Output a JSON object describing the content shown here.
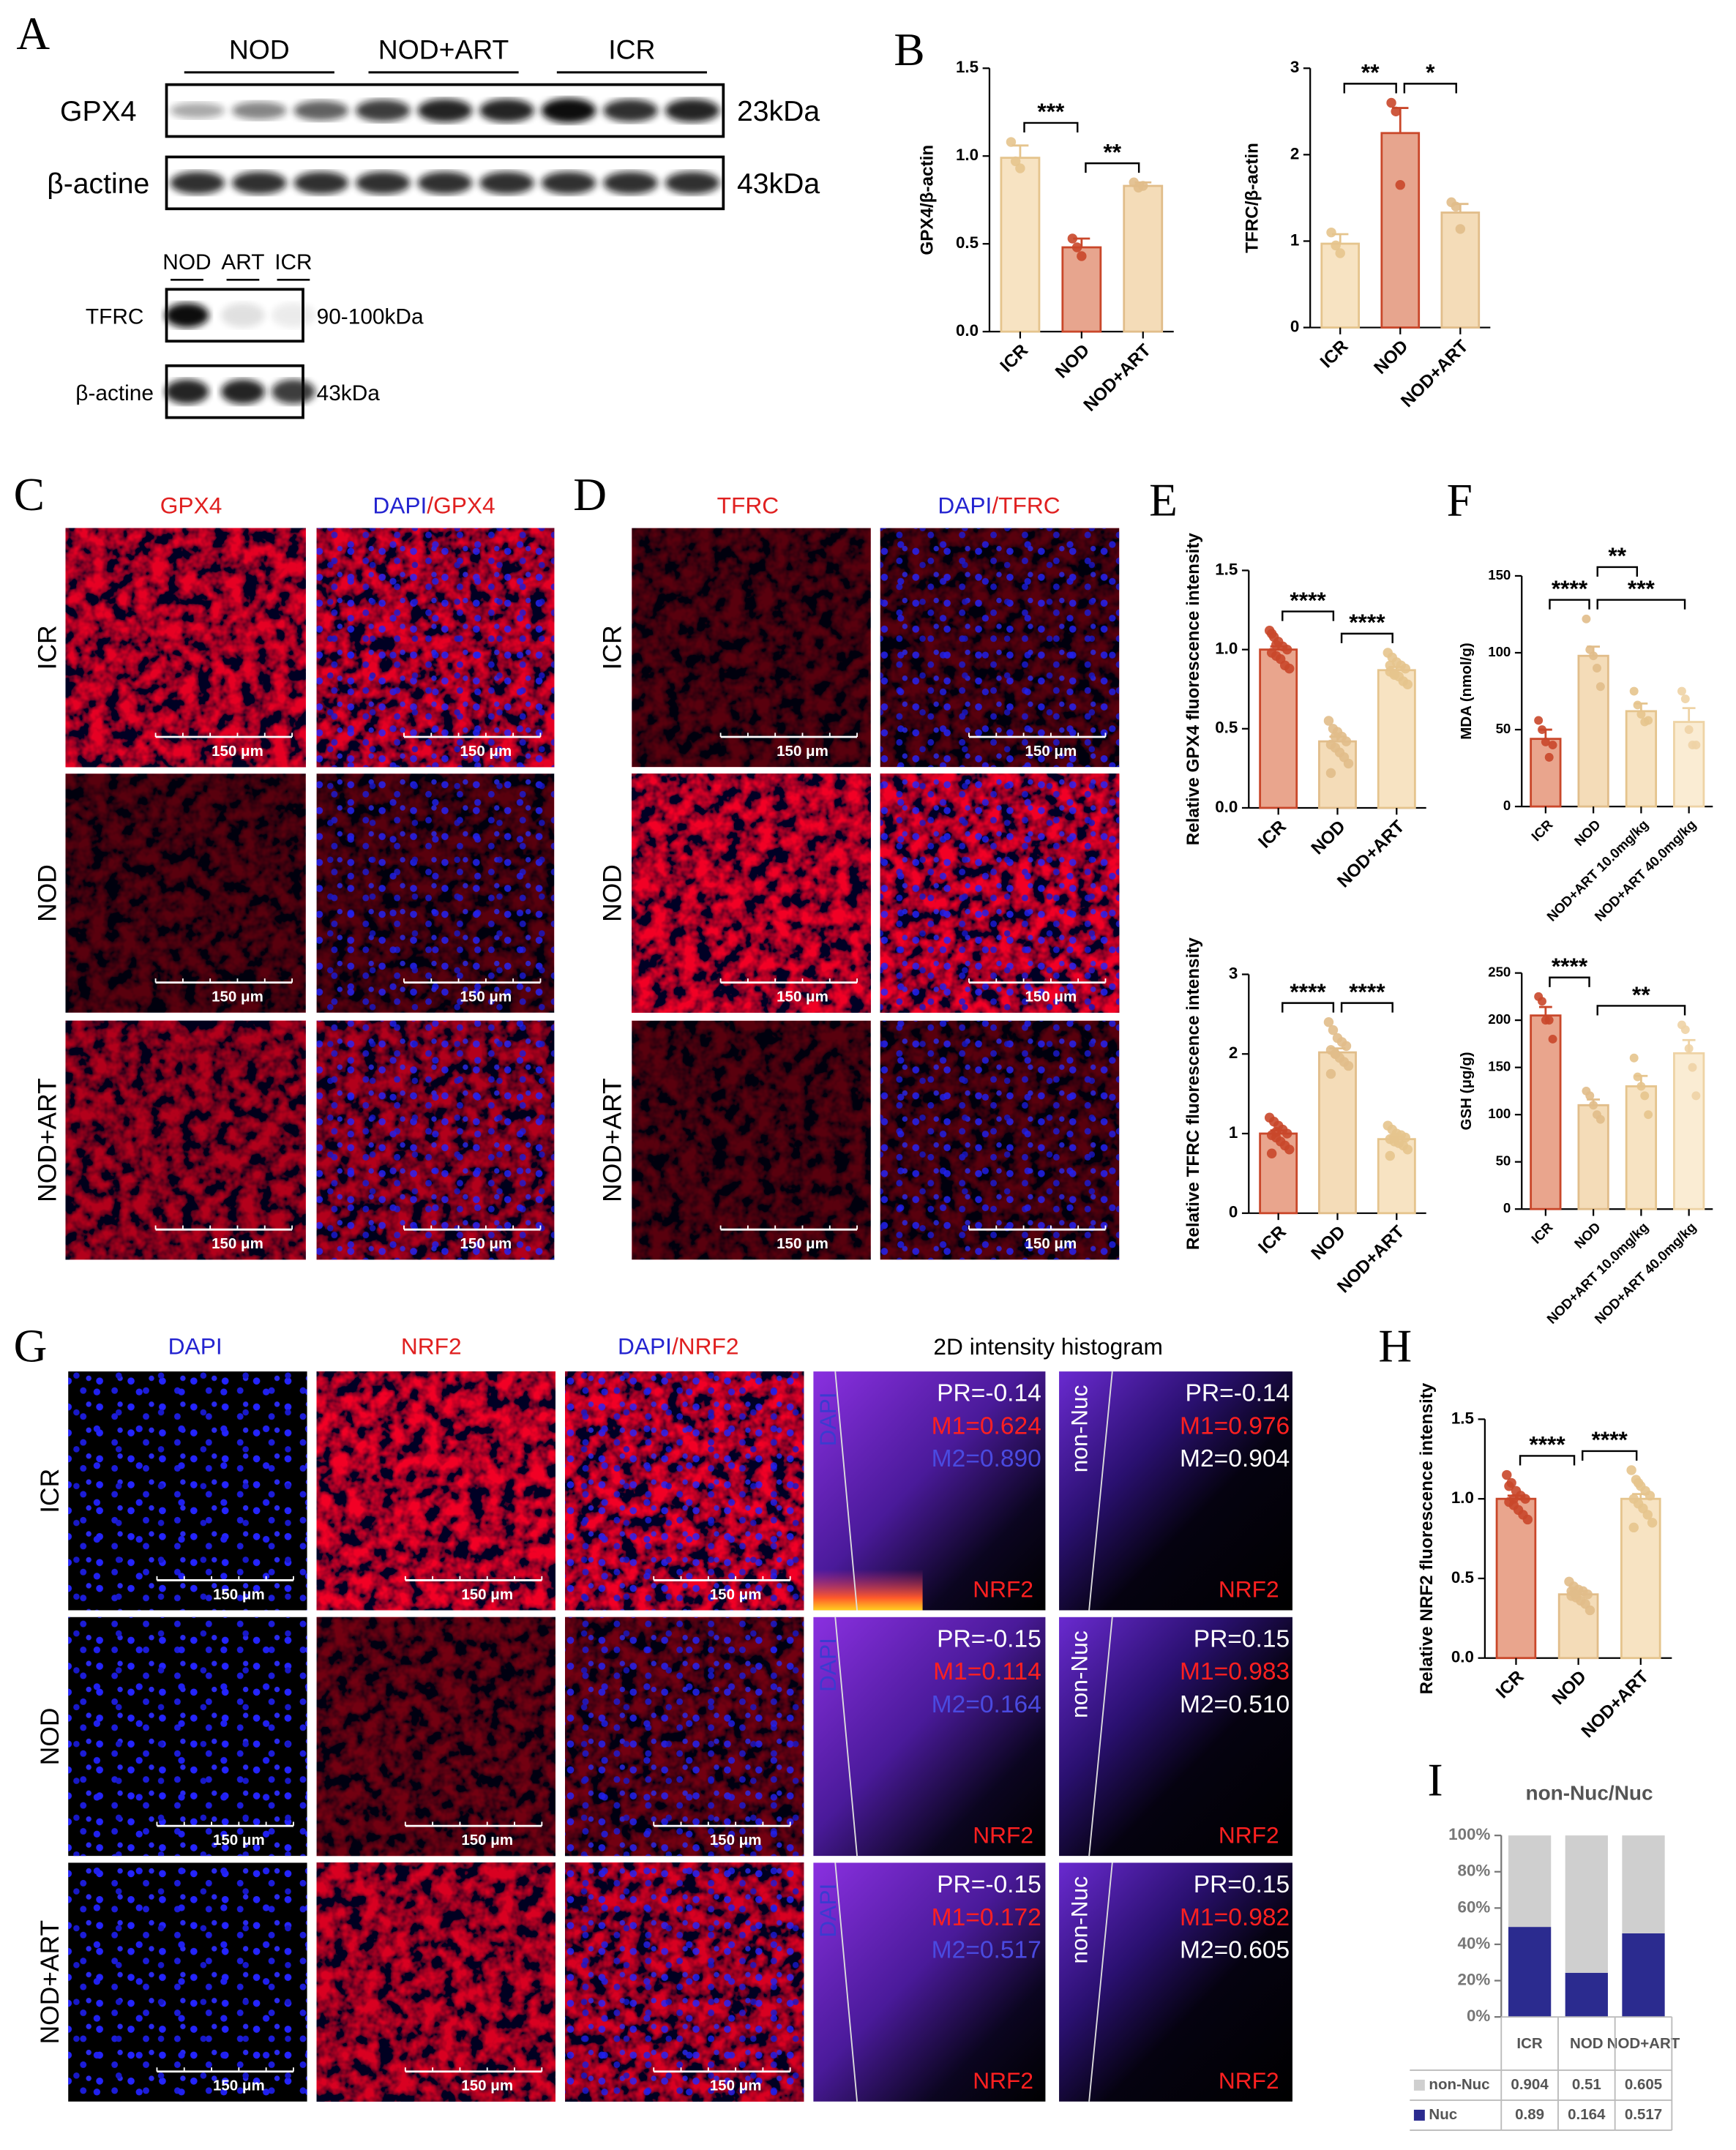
{
  "letters": [
    "A",
    "B",
    "C",
    "D",
    "E",
    "F",
    "G",
    "H",
    "I"
  ],
  "row_labels": [
    "ICR",
    "NOD",
    "NOD+ART"
  ],
  "scale_bar": "150 μm",
  "blot": {
    "groups": [
      "NOD",
      "NOD+ART",
      "ICR"
    ],
    "rows": [
      {
        "label": "GPX4",
        "size": "23kDa"
      },
      {
        "label": "β-actine",
        "size": "43kDa"
      }
    ],
    "small_groups": [
      "NOD",
      "ART",
      "ICR"
    ],
    "small_rows": [
      {
        "label": "TFRC",
        "size": "90-100kDa"
      },
      {
        "label": "β-actine",
        "size": "43kDa"
      }
    ]
  },
  "panel_c": {
    "headers": [
      [
        "GPX4"
      ],
      [
        "DAPI",
        "/GPX4"
      ]
    ]
  },
  "panel_d": {
    "headers": [
      [
        "TFRC"
      ],
      [
        "DAPI",
        "/TFRC"
      ]
    ]
  },
  "panel_g": {
    "headers": [
      [
        "DAPI"
      ],
      [
        "NRF2"
      ],
      [
        "DAPI",
        "/NRF2"
      ]
    ],
    "histogram_title": "2D intensity histogram",
    "axis_labels": {
      "dapi": "DAPI",
      "nrf2": "NRF2",
      "non_nuc": "non-Nuc"
    },
    "stats": [
      {
        "left": [
          "PR=-0.14",
          "M1=0.624",
          "M2=0.890"
        ],
        "right": [
          "PR=-0.14",
          "M1=0.976",
          "M2=0.904"
        ]
      },
      {
        "left": [
          "PR=-0.15",
          "M1=0.114",
          "M2=0.164"
        ],
        "right": [
          "PR=0.15",
          "M1=0.983",
          "M2=0.510"
        ]
      },
      {
        "left": [
          "PR=-0.15",
          "M1=0.172",
          "M2=0.517"
        ],
        "right": [
          "PR=0.15",
          "M1=0.982",
          "M2=0.605"
        ]
      }
    ]
  },
  "chart_data": [
    {
      "type": "bar",
      "ylabel": "GPX4/β-actin",
      "categories": [
        "ICR",
        "NOD",
        "NOD+ART"
      ],
      "values": [
        0.99,
        0.48,
        0.83
      ],
      "errors": [
        0.07,
        0.05,
        0.02
      ],
      "points": [
        [
          1.08,
          0.97,
          0.93
        ],
        [
          0.53,
          0.48,
          0.43
        ],
        [
          0.85,
          0.82,
          0.83
        ]
      ],
      "colors": [
        "#f7e3c2",
        "#e7a58e",
        "#f4dcb8"
      ],
      "edge_colors": [
        "#e5c48d",
        "#c9472a",
        "#e1bd8a"
      ],
      "ylim": [
        0,
        1.5
      ],
      "yticks": [
        {
          "value": 0,
          "label": "0.0"
        },
        {
          "value": 0.5,
          "label": "0.5"
        },
        {
          "value": 1,
          "label": "1.0"
        },
        {
          "value": 1.5,
          "label": "1.5"
        }
      ],
      "significance": [
        {
          "pair": [
            0,
            1
          ],
          "label": "***"
        },
        {
          "pair": [
            1,
            2
          ],
          "label": "**"
        }
      ]
    },
    {
      "type": "bar",
      "ylabel": "TFRC/β-actin",
      "categories": [
        "ICR",
        "NOD",
        "NOD+ART"
      ],
      "values": [
        0.97,
        2.25,
        1.33
      ],
      "errors": [
        0.11,
        0.29,
        0.1
      ],
      "points": [
        [
          1.1,
          0.95,
          0.86
        ],
        [
          2.6,
          2.5,
          1.65
        ],
        [
          1.45,
          1.4,
          1.14
        ]
      ],
      "colors": [
        "#f7e3c2",
        "#e7a58e",
        "#f4dcb8"
      ],
      "edge_colors": [
        "#e5c48d",
        "#c9472a",
        "#e1bd8a"
      ],
      "ylim": [
        0,
        3
      ],
      "yticks": [
        0,
        1,
        2,
        3
      ],
      "significance": [
        {
          "pair": [
            0,
            1
          ],
          "label": "**"
        },
        {
          "pair": [
            1,
            2
          ],
          "label": "*"
        }
      ]
    },
    {
      "type": "bar",
      "ylabel": "Relative GPX4 fluorescence intensity",
      "categories": [
        "ICR",
        "NOD",
        "NOD+ART"
      ],
      "values": [
        1.0,
        0.42,
        0.87
      ],
      "errors": [
        0.02,
        0.03,
        0.02
      ],
      "points": [
        [
          1.12,
          1.08,
          1.05,
          1.02,
          1.0,
          0.98,
          0.96,
          0.94,
          0.9,
          0.88,
          1.1,
          1.03
        ],
        [
          0.55,
          0.5,
          0.48,
          0.45,
          0.42,
          0.4,
          0.38,
          0.35,
          0.32,
          0.28,
          0.22,
          0.45
        ],
        [
          0.98,
          0.95,
          0.92,
          0.9,
          0.88,
          0.86,
          0.85,
          0.83,
          0.8,
          0.78,
          0.9,
          0.84
        ]
      ],
      "colors": [
        "#e9a58d",
        "#f4dcb8",
        "#f7e3c2"
      ],
      "edge_colors": [
        "#c9472a",
        "#e1bd8a",
        "#e5c48d"
      ],
      "ylim": [
        0,
        1.5
      ],
      "yticks": [
        {
          "value": 0,
          "label": "0.0"
        },
        {
          "value": 0.5,
          "label": "0.5"
        },
        {
          "value": 1,
          "label": "1.0"
        },
        {
          "value": 1.5,
          "label": "1.5"
        }
      ],
      "significance": [
        {
          "pair": [
            0,
            1
          ],
          "label": "****"
        },
        {
          "pair": [
            1,
            2
          ],
          "label": "****"
        }
      ]
    },
    {
      "type": "bar",
      "ylabel": "Relative TFRC fluorescence intensity",
      "categories": [
        "ICR",
        "NOD",
        "NOD+ART"
      ],
      "values": [
        1.0,
        2.02,
        0.93
      ],
      "errors": [
        0.04,
        0.05,
        0.03
      ],
      "points": [
        [
          1.2,
          1.15,
          1.1,
          1.05,
          1.0,
          0.98,
          0.95,
          0.9,
          0.85,
          0.8,
          0.75,
          1.02
        ],
        [
          2.4,
          2.3,
          2.2,
          2.15,
          2.1,
          2.05,
          2.0,
          1.95,
          1.9,
          1.85,
          1.75,
          2.0
        ],
        [
          1.1,
          1.05,
          1.0,
          0.98,
          0.95,
          0.93,
          0.9,
          0.88,
          0.85,
          0.8,
          0.72,
          0.95
        ]
      ],
      "colors": [
        "#e9a58d",
        "#f4dcb8",
        "#f7e3c2"
      ],
      "edge_colors": [
        "#c9472a",
        "#e1bd8a",
        "#e5c48d"
      ],
      "ylim": [
        0,
        3
      ],
      "yticks": [
        0,
        1,
        2,
        3
      ],
      "significance": [
        {
          "pair": [
            0,
            1
          ],
          "label": "****"
        },
        {
          "pair": [
            1,
            2
          ],
          "label": "****"
        }
      ]
    },
    {
      "type": "bar",
      "ylabel": "MDA (nmol/g)",
      "categories": [
        "ICR",
        "NOD",
        "NOD+ART 10.0mg/kg",
        "NOD+ART 40.0mg/kg"
      ],
      "values": [
        44,
        98,
        62,
        55
      ],
      "errors": [
        6,
        6,
        5,
        9
      ],
      "points": [
        [
          56,
          50,
          42,
          32,
          40
        ],
        [
          122,
          102,
          98,
          90,
          78
        ],
        [
          75,
          66,
          60,
          55,
          56
        ],
        [
          75,
          70,
          50,
          40,
          40
        ]
      ],
      "colors": [
        "#e9a58d",
        "#f4dcb8",
        "#f7e3c2",
        "#faecd3"
      ],
      "edge_colors": [
        "#c9472a",
        "#e1bd8a",
        "#e5c48d",
        "#eed3a5"
      ],
      "ylim": [
        0,
        150
      ],
      "yticks": [
        0,
        50,
        100,
        150
      ],
      "significance": [
        {
          "pair": [
            0,
            1
          ],
          "label": "****"
        },
        {
          "pair": [
            1,
            3
          ],
          "label": "***"
        },
        {
          "pair": [
            1,
            2
          ],
          "label": "**"
        }
      ]
    },
    {
      "type": "bar",
      "ylabel": "GSH (μg/g)",
      "categories": [
        "ICR",
        "NOD",
        "NOD+ART 10.0mg/kg",
        "NOD+ART 40.0mg/kg"
      ],
      "values": [
        205,
        110,
        130,
        165
      ],
      "errors": [
        9,
        6,
        11,
        14
      ],
      "points": [
        [
          225,
          220,
          200,
          200,
          180
        ],
        [
          125,
          120,
          110,
          100,
          95
        ],
        [
          160,
          140,
          130,
          120,
          100
        ],
        [
          195,
          190,
          170,
          150,
          120
        ]
      ],
      "colors": [
        "#e9a58d",
        "#f4dcb8",
        "#f7e3c2",
        "#faecd3"
      ],
      "edge_colors": [
        "#c9472a",
        "#e1bd8a",
        "#e5c48d",
        "#eed3a5"
      ],
      "ylim": [
        0,
        250
      ],
      "yticks": [
        0,
        50,
        100,
        150,
        200,
        250
      ],
      "significance": [
        {
          "pair": [
            0,
            1
          ],
          "label": "****"
        },
        {
          "pair": [
            1,
            3
          ],
          "label": "**"
        }
      ]
    },
    {
      "type": "bar",
      "ylabel": "Relative NRF2 fluorescence intensity",
      "categories": [
        "ICR",
        "NOD",
        "NOD+ART"
      ],
      "values": [
        1.0,
        0.4,
        1.0
      ],
      "errors": [
        0.02,
        0.02,
        0.03
      ],
      "points": [
        [
          1.15,
          1.1,
          1.05,
          1.02,
          1.0,
          0.98,
          0.96,
          0.93,
          0.9,
          0.87,
          1.08,
          1.0
        ],
        [
          0.48,
          0.45,
          0.43,
          0.42,
          0.4,
          0.39,
          0.38,
          0.36,
          0.34,
          0.3,
          0.42,
          0.4
        ],
        [
          1.18,
          1.12,
          1.08,
          1.05,
          1.02,
          1.0,
          0.97,
          0.94,
          0.9,
          0.85,
          0.82,
          1.1
        ]
      ],
      "colors": [
        "#e9a58d",
        "#f4dcb8",
        "#f7e3c2"
      ],
      "edge_colors": [
        "#c9472a",
        "#e1bd8a",
        "#e5c48d"
      ],
      "ylim": [
        0,
        1.5
      ],
      "yticks": [
        {
          "value": 0,
          "label": "0.0"
        },
        {
          "value": 0.5,
          "label": "0.5"
        },
        {
          "value": 1,
          "label": "1.0"
        },
        {
          "value": 1.5,
          "label": "1.5"
        }
      ],
      "significance": [
        {
          "pair": [
            0,
            1
          ],
          "label": "****"
        },
        {
          "pair": [
            1,
            2
          ],
          "label": "****"
        }
      ]
    },
    {
      "type": "stacked100",
      "title": "non-Nuc/Nuc",
      "categories": [
        "ICR",
        "NOD",
        "NOD+ART"
      ],
      "series": [
        {
          "name": "Nuc",
          "color": "#2b2b8f",
          "values": [
            0.89,
            0.164,
            0.517
          ]
        },
        {
          "name": "non-Nuc",
          "color": "#cfcfcf",
          "values": [
            0.904,
            0.51,
            0.605
          ]
        }
      ],
      "ylim": [
        0,
        100
      ],
      "yticks": [
        {
          "value": 0,
          "label": "0%"
        },
        {
          "value": 20,
          "label": "20%"
        },
        {
          "value": 40,
          "label": "40%"
        },
        {
          "value": 60,
          "label": "60%"
        },
        {
          "value": 80,
          "label": "80%"
        },
        {
          "value": 100,
          "label": "100%"
        }
      ]
    }
  ]
}
